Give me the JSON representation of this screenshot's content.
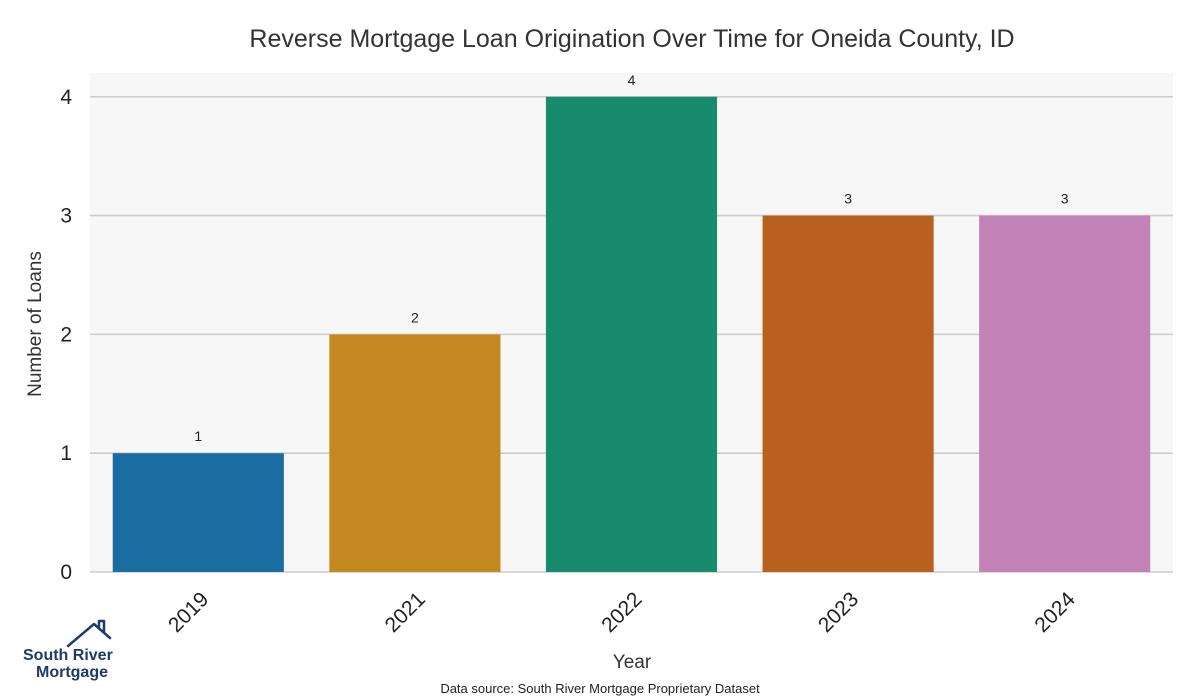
{
  "chart_data": {
    "type": "bar",
    "title": "Reverse Mortgage Loan Origination Over Time for Oneida County, ID",
    "xlabel": "Year",
    "ylabel": "Number of Loans",
    "categories": [
      "2019",
      "2021",
      "2022",
      "2023",
      "2024"
    ],
    "values": [
      1,
      2,
      4,
      3,
      3
    ],
    "colors": [
      "#1a6da1",
      "#c48820",
      "#178b6c",
      "#b8611f",
      "#c282b6"
    ],
    "ylim": [
      0,
      4.2
    ],
    "yticks": [
      0,
      1,
      2,
      3,
      4
    ],
    "grid": true,
    "plot_background": "#f7f7f7",
    "grid_color": "#cccccc"
  },
  "footer": {
    "source": "Data source: South River Mortgage Proprietary Dataset"
  },
  "brand": {
    "line1": "South River",
    "line2": "Mortgage",
    "icon": "house-roof-icon",
    "color": "#1f3b68"
  }
}
